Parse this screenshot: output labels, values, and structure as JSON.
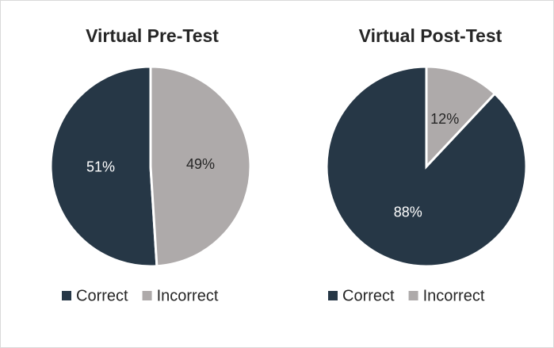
{
  "chart_data": [
    {
      "type": "pie",
      "title": "Virtual Pre-Test",
      "categories": [
        "Correct",
        "Incorrect"
      ],
      "values": [
        51,
        49
      ],
      "value_labels": [
        "51%",
        "49%"
      ],
      "colors": [
        "#263746",
        "#aeaaaa"
      ],
      "legend": "bottom"
    },
    {
      "type": "pie",
      "title": "Virtual Post-Test",
      "categories": [
        "Correct",
        "Incorrect"
      ],
      "values": [
        88,
        12
      ],
      "value_labels": [
        "88%",
        "12%"
      ],
      "colors": [
        "#263746",
        "#aeaaaa"
      ],
      "legend": "bottom"
    }
  ]
}
